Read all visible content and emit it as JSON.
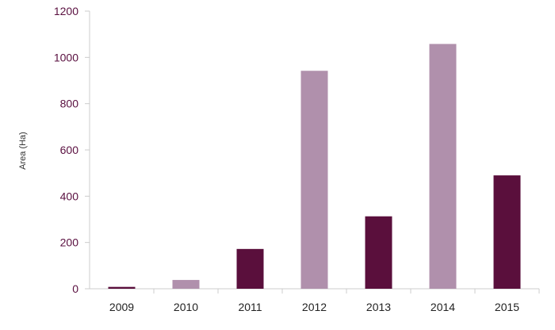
{
  "chart_data": {
    "type": "bar",
    "title": "",
    "xlabel": "",
    "ylabel": "Area (Ha)",
    "categories": [
      "2009",
      "2010",
      "2011",
      "2012",
      "2013",
      "2014",
      "2015"
    ],
    "values": [
      8,
      38,
      172,
      942,
      313,
      1058,
      490
    ],
    "bar_colors": [
      "#5a0f3c",
      "#b090ac",
      "#5a0f3c",
      "#b090ac",
      "#5a0f3c",
      "#b090ac",
      "#5a0f3c"
    ],
    "ylim": [
      0,
      1200
    ],
    "yticks": [
      0,
      200,
      400,
      600,
      800,
      1000,
      1200
    ],
    "grid": false,
    "legend": "none"
  },
  "colors": {
    "dark_bar": "#5a0f3c",
    "light_bar": "#b090ac",
    "axis": "#cccccc",
    "ytick_text": "#5a1040",
    "xtick_text": "#222222"
  }
}
